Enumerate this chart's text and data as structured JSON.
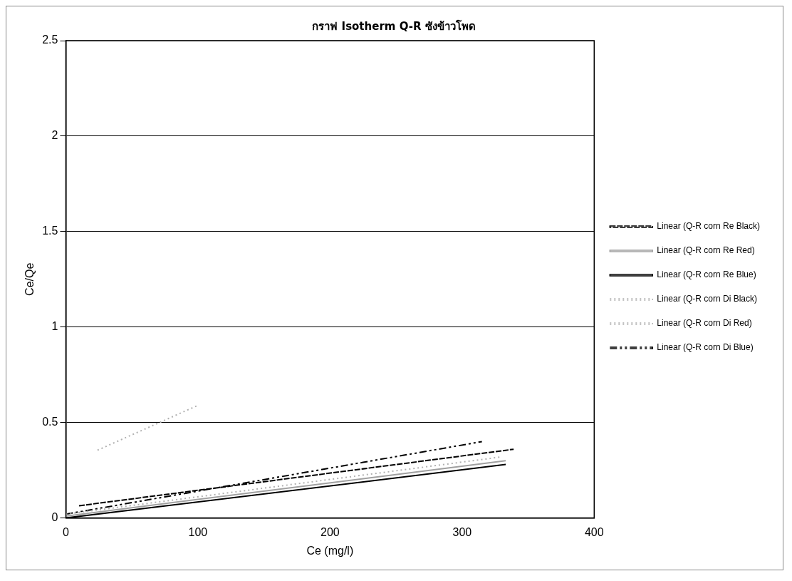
{
  "chart_data": {
    "type": "line",
    "title": "กราฟ Isotherm Q-R ซังข้าวโพด",
    "xlabel": "Ce (mg/l)",
    "ylabel": "Ce/Qe",
    "xlim": [
      0,
      400
    ],
    "xticks": [
      0,
      100,
      200,
      300,
      400
    ],
    "ylim": [
      0,
      2.5
    ],
    "yticks": [
      0,
      0.5,
      1,
      1.5,
      2,
      2.5
    ],
    "grid": "y",
    "legend": "right",
    "marker": "none",
    "series": [
      {
        "name": "Linear (Q-R corn Re Black)",
        "color": "#000000",
        "line_style": "dashed",
        "x": [
          10,
          339
        ],
        "values": [
          0.064,
          0.36
        ]
      },
      {
        "name": "Linear (Q-R corn Re Red)",
        "color": "#a0a0a0",
        "line_style": "solid",
        "x": [
          0,
          333
        ],
        "values": [
          0.01,
          0.3
        ]
      },
      {
        "name": "Linear (Q-R corn Re Blue)",
        "color": "#000000",
        "line_style": "solid",
        "x": [
          0,
          333
        ],
        "values": [
          0,
          0.28
        ]
      },
      {
        "name": "Linear (Q-R corn Di Black)",
        "color": "#b0b0b0",
        "line_style": "dotted",
        "x": [
          0,
          330
        ],
        "values": [
          0.02,
          0.32
        ]
      },
      {
        "name": "Linear (Q-R corn Di Red)",
        "color": "#b0b0b0",
        "line_style": "dotted",
        "x": [
          24,
          100
        ],
        "values": [
          0.355,
          0.59
        ]
      },
      {
        "name": "Linear (Q-R corn Di Blue)",
        "color": "#000000",
        "line_style": "dashdot",
        "x": [
          0,
          315
        ],
        "values": [
          0.02,
          0.4
        ]
      }
    ]
  }
}
